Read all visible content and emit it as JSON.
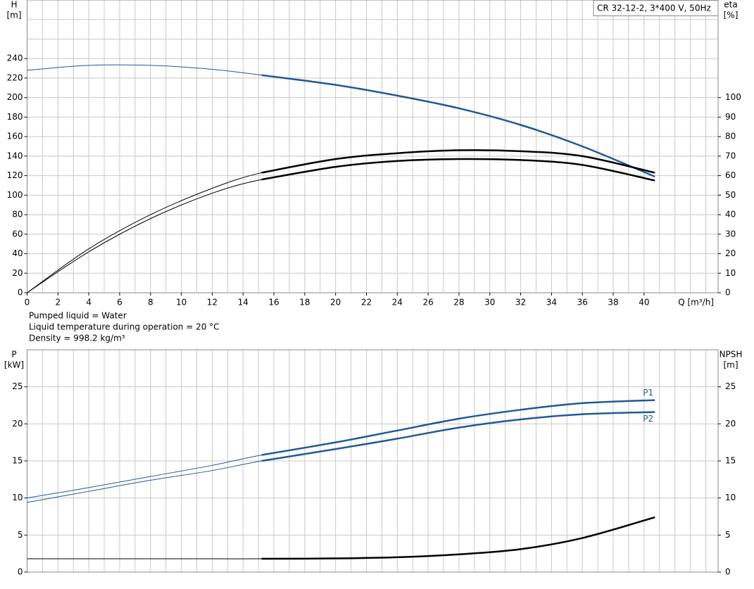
{
  "chart_data": [
    {
      "type": "line",
      "title": "CR 32-12-2, 3*400 V, 50Hz",
      "ylabel": "H",
      "yunit": "[m]",
      "y2label": "eta",
      "y2unit": "[%]",
      "xlabel": "Q [m³/h]",
      "notes": [
        "Pumped liquid = Water",
        "Liquid temperature during operation = 20 °C",
        "Density = 998.2 kg/m³"
      ],
      "x": [
        0,
        4,
        8,
        12,
        15.2,
        20,
        24,
        28,
        32,
        36,
        40.7
      ],
      "xlim": [
        0,
        44.8
      ],
      "xticks": [
        0,
        2,
        4,
        6,
        8,
        10,
        12,
        14,
        16,
        18,
        20,
        22,
        24,
        26,
        28,
        30,
        32,
        34,
        36,
        38,
        40
      ],
      "ylim": [
        0,
        300
      ],
      "yticks": [
        0,
        20,
        40,
        60,
        80,
        100,
        120,
        140,
        160,
        180,
        200,
        220,
        240
      ],
      "y2lim": [
        0,
        150
      ],
      "y2ticks": [
        0,
        10,
        20,
        30,
        40,
        50,
        60,
        70,
        80,
        90,
        100
      ],
      "highlight_from": 15.2,
      "grid": true,
      "series": [
        {
          "color": "#1f5a96",
          "values": [
            228,
            233,
            233,
            229,
            223,
            213,
            202,
            189,
            172,
            150,
            119
          ]
        },
        {
          "color": "#000000",
          "axis": "y2",
          "values": [
            0,
            22.5,
            40,
            53.5,
            61.5,
            68.5,
            71.5,
            73,
            72.5,
            70,
            61.5
          ]
        },
        {
          "color": "#000000",
          "axis": "y2",
          "values": [
            0,
            21,
            38,
            51,
            58,
            64.5,
            67.5,
            68.5,
            68,
            65.5,
            57.5
          ]
        }
      ]
    },
    {
      "type": "line",
      "ylabel": "P",
      "yunit": "[kW]",
      "y2label": "NPSH",
      "y2unit": "[m]",
      "x": [
        0,
        4,
        8,
        12,
        15.2,
        20,
        24,
        28,
        32,
        36,
        40.7
      ],
      "xlim": [
        0,
        44.8
      ],
      "ylim": [
        0,
        30
      ],
      "yticks": [
        0,
        5,
        10,
        15,
        20,
        25
      ],
      "y2lim": [
        0,
        30
      ],
      "y2ticks": [
        0,
        5,
        10,
        15,
        20,
        25
      ],
      "highlight_from": 15.2,
      "grid": true,
      "series": [
        {
          "name": "P1",
          "color": "#1f5a96",
          "values": [
            10,
            11.4,
            12.9,
            14.4,
            15.8,
            17.5,
            19.1,
            20.7,
            21.9,
            22.8,
            23.2
          ]
        },
        {
          "name": "P2",
          "color": "#1f5a96",
          "values": [
            9.4,
            10.9,
            12.4,
            13.7,
            15.0,
            16.6,
            18.0,
            19.5,
            20.6,
            21.3,
            21.6
          ]
        },
        {
          "color": "#000000",
          "axis": "y2",
          "values": [
            1.8,
            1.8,
            1.8,
            1.8,
            1.8,
            1.85,
            2.0,
            2.4,
            3.1,
            4.6,
            7.4
          ]
        }
      ]
    }
  ]
}
